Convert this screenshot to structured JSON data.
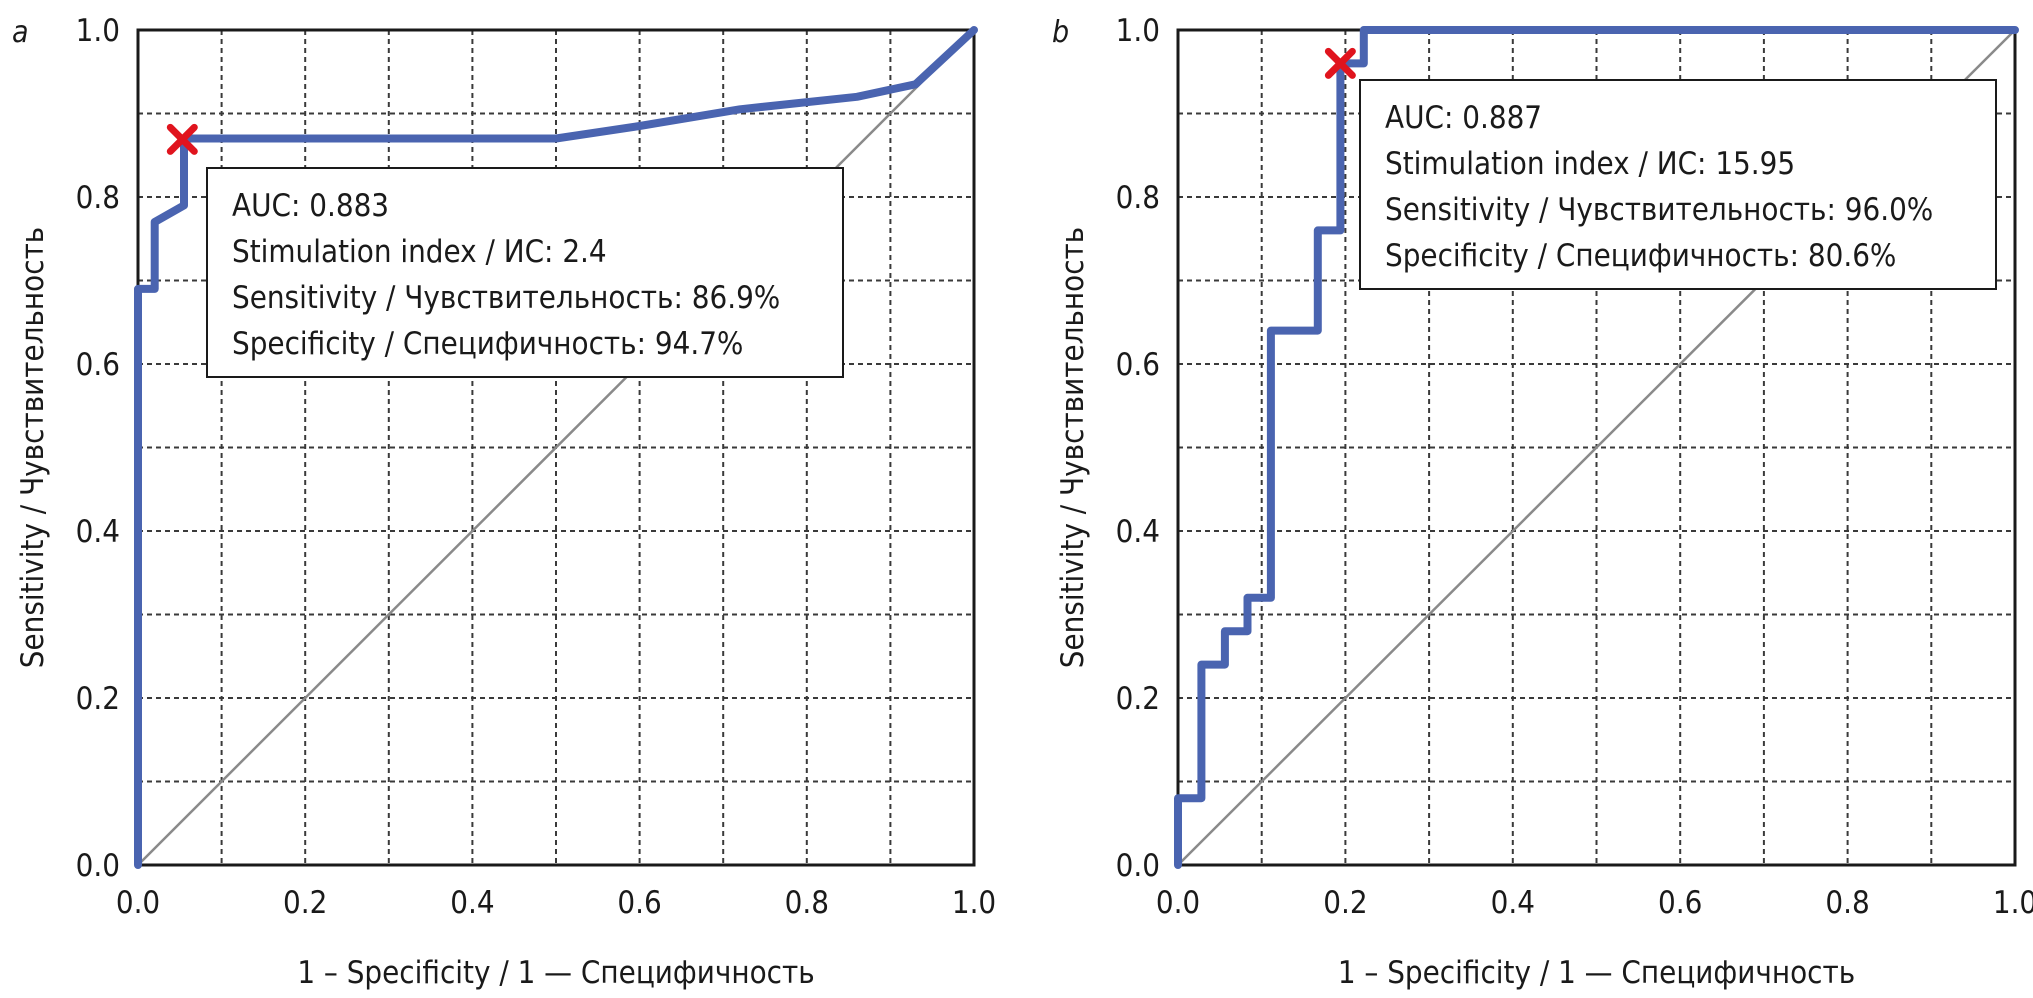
{
  "chart_data": [
    {
      "type": "line",
      "panel_label": "a",
      "xlabel": "1 – Specificity / 1 — Специфичность",
      "ylabel": "Sensitivity / Чувствительность",
      "xlim": [
        0,
        1
      ],
      "ylim": [
        0,
        1
      ],
      "x_ticks": [
        "0.0",
        "0.2",
        "0.4",
        "0.6",
        "0.8",
        "1.0"
      ],
      "y_ticks": [
        "0.0",
        "0.2",
        "0.4",
        "0.6",
        "0.8",
        "1.0"
      ],
      "grid": true,
      "series": [
        {
          "type": "step",
          "x": [
            0,
            0,
            0.02,
            0.02,
            0.055,
            0.055,
            0.5,
            0.6,
            0.72,
            0.86,
            0.93,
            1.0
          ],
          "y": [
            0,
            0.69,
            0.69,
            0.77,
            0.79,
            0.87,
            0.87,
            0.885,
            0.905,
            0.92,
            0.935,
            1.0
          ]
        },
        {
          "type": "reference-diagonal",
          "x": [
            0,
            1
          ],
          "y": [
            0,
            1
          ]
        }
      ],
      "marker": {
        "x": 0.053,
        "y": 0.869,
        "symbol": "x"
      },
      "annotation": [
        "AUC: 0.883",
        "Stimulation index / ИС: 2.4",
        "Sensitivity / Чувствительность: 86.9%",
        "Specificity / Специфичность: 94.7%"
      ],
      "annotation_anchor": "upper-middle"
    },
    {
      "type": "line",
      "panel_label": "b",
      "xlabel": "1 – Specificity / 1 — Специфичность",
      "ylabel": "Sensitivity / Чувствительность",
      "xlim": [
        0,
        1
      ],
      "ylim": [
        0,
        1
      ],
      "x_ticks": [
        "0.0",
        "0.2",
        "0.4",
        "0.6",
        "0.8",
        "1.0"
      ],
      "y_ticks": [
        "0.0",
        "0.2",
        "0.4",
        "0.6",
        "0.8",
        "1.0"
      ],
      "grid": true,
      "series": [
        {
          "type": "step",
          "x": [
            0,
            0,
            0.028,
            0.028,
            0.056,
            0.056,
            0.083,
            0.083,
            0.111,
            0.111,
            0.167,
            0.167,
            0.194,
            0.194,
            0.222,
            0.222,
            1.0
          ],
          "y": [
            0,
            0.08,
            0.08,
            0.24,
            0.24,
            0.28,
            0.28,
            0.32,
            0.32,
            0.64,
            0.64,
            0.76,
            0.76,
            0.96,
            0.96,
            1.0,
            1.0
          ]
        },
        {
          "type": "reference-diagonal",
          "x": [
            0,
            1
          ],
          "y": [
            0,
            1
          ]
        }
      ],
      "marker": {
        "x": 0.194,
        "y": 0.96,
        "symbol": "x"
      },
      "annotation": [
        "AUC: 0.887",
        "Stimulation index / ИС: 15.95",
        "Sensitivity / Чувствительность: 96.0%",
        "Specificity / Специфичность: 80.6%"
      ],
      "annotation_anchor": "upper-middle"
    }
  ],
  "colors": {
    "roc_curve": "#4a64b0",
    "marker": "#e0141e",
    "diagonal": "#8a8a8a",
    "grid": "#3a3a3a",
    "frame": "#1a1a1a"
  }
}
